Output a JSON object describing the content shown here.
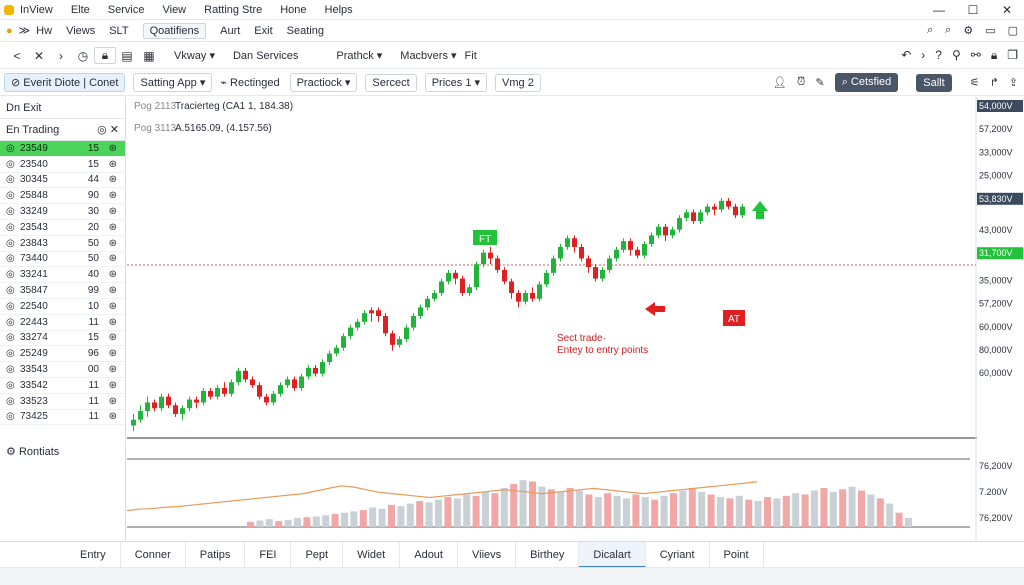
{
  "menu": [
    "InView",
    "Elte",
    "Service",
    "View",
    "Ratting Stre",
    "Hone",
    "Helps"
  ],
  "tabs": [
    {
      "label": "Hw",
      "active": false
    },
    {
      "label": "Views",
      "active": false
    },
    {
      "label": "SLT",
      "active": false
    },
    {
      "label": "Qoatifiens",
      "active": true
    },
    {
      "label": "Aurt",
      "active": false
    },
    {
      "label": "Exit",
      "active": false
    },
    {
      "label": "Seating",
      "active": false
    }
  ],
  "toolbar1": {
    "dropdowns": [
      "Vkway",
      "Dan Services",
      "Prathck",
      "Macbvers",
      "Fit"
    ]
  },
  "toolbar2": {
    "event_btn": "Everit Diote",
    "event_btn2": "Conet",
    "setting": "Satting App",
    "rect": "Rectinged",
    "predict": "Practiock",
    "sercect": "Sercect",
    "prices": "Prices 1",
    "vmg": "Vmg 2",
    "right_btn1": "Cetsfied",
    "right_btn2": "Sallt"
  },
  "sidebar": {
    "title": "Dn Exit",
    "subtitle": "En Trading",
    "rows": [
      {
        "id": "23549",
        "a": "15",
        "b": "",
        "selected": true
      },
      {
        "id": "23540",
        "a": "15",
        "b": "",
        "selected": false
      },
      {
        "id": "30345",
        "a": "44",
        "b": "",
        "selected": false
      },
      {
        "id": "25848",
        "a": "90",
        "b": "",
        "selected": false
      },
      {
        "id": "33249",
        "a": "30",
        "b": "",
        "selected": false
      },
      {
        "id": "23543",
        "a": "20",
        "b": "",
        "selected": false
      },
      {
        "id": "23843",
        "a": "50",
        "b": "",
        "selected": false
      },
      {
        "id": "73440",
        "a": "50",
        "b": "",
        "selected": false
      },
      {
        "id": "33241",
        "a": "40",
        "b": "",
        "selected": false
      },
      {
        "id": "35847",
        "a": "99",
        "b": "",
        "selected": false
      },
      {
        "id": "22540",
        "a": "10",
        "b": "",
        "selected": false
      },
      {
        "id": "22443",
        "a": "11",
        "b": "",
        "selected": false
      },
      {
        "id": "33274",
        "a": "15",
        "b": "",
        "selected": false
      },
      {
        "id": "25249",
        "a": "96",
        "b": "",
        "selected": false
      },
      {
        "id": "33543",
        "a": "00",
        "b": "",
        "selected": false
      },
      {
        "id": "33542",
        "a": "11",
        "b": "",
        "selected": false
      },
      {
        "id": "33523",
        "a": "11",
        "b": "",
        "selected": false
      },
      {
        "id": "73425",
        "a": "11",
        "b": "",
        "selected": false
      }
    ]
  },
  "bottom_left_label": "Rontiats",
  "chart_info": {
    "line1_prefix": "Pog 2113",
    "line1": "Tracierteg (CA1 1, 184.38)",
    "line2_prefix": "Pog 3113",
    "line2": "A.5165.09, (4.157.56)",
    "entry_tag": "FT",
    "exit_tag": "AT",
    "annotation_line1": "Sect trade·",
    "annotation_line2": "Entey to entry points"
  },
  "price_axis": {
    "labels": [
      "54,000V",
      "57,200V",
      "33,000V",
      "25,000V",
      "53,830V",
      "43,000V",
      "31,700V",
      "35,000V",
      "57,200V",
      "60,000V",
      "80,000V",
      "60,000V"
    ],
    "highlight_indexes": [
      0,
      4,
      6
    ],
    "lower_labels": [
      "76,200V",
      "7.200V",
      "76,200V"
    ]
  },
  "bottom_tabs": [
    "Entry",
    "Conner",
    "Patips",
    "FEI",
    "Pept",
    "Widet",
    "Adout",
    "Viievs",
    "Birthey",
    "Dicalart",
    "Cyriant",
    "Point"
  ],
  "bottom_tabs_active": 9,
  "chart_data": {
    "type": "candlestick",
    "y_range": [
      0,
      100
    ],
    "candles": [
      [
        4,
        6,
        2,
        8,
        "u"
      ],
      [
        6,
        9,
        5,
        11,
        "u"
      ],
      [
        9,
        12,
        7,
        14,
        "u"
      ],
      [
        12,
        10,
        9,
        13,
        "d"
      ],
      [
        10,
        14,
        9,
        15,
        "u"
      ],
      [
        14,
        11,
        10,
        15,
        "d"
      ],
      [
        11,
        8,
        7,
        12,
        "d"
      ],
      [
        8,
        10,
        6,
        11,
        "u"
      ],
      [
        10,
        13,
        9,
        14,
        "u"
      ],
      [
        13,
        12,
        10,
        14,
        "d"
      ],
      [
        12,
        16,
        11,
        17,
        "u"
      ],
      [
        16,
        14,
        13,
        17,
        "d"
      ],
      [
        14,
        17,
        13,
        18,
        "u"
      ],
      [
        17,
        15,
        14,
        19,
        "d"
      ],
      [
        15,
        19,
        14,
        20,
        "u"
      ],
      [
        19,
        23,
        18,
        24,
        "u"
      ],
      [
        23,
        20,
        19,
        24,
        "d"
      ],
      [
        20,
        18,
        17,
        21,
        "d"
      ],
      [
        18,
        14,
        13,
        19,
        "d"
      ],
      [
        14,
        12,
        11,
        15,
        "d"
      ],
      [
        12,
        15,
        11,
        16,
        "u"
      ],
      [
        15,
        18,
        14,
        19,
        "u"
      ],
      [
        18,
        20,
        17,
        21,
        "u"
      ],
      [
        20,
        17,
        16,
        21,
        "d"
      ],
      [
        17,
        21,
        16,
        22,
        "u"
      ],
      [
        21,
        24,
        20,
        25,
        "u"
      ],
      [
        24,
        22,
        21,
        25,
        "d"
      ],
      [
        22,
        26,
        21,
        27,
        "u"
      ],
      [
        26,
        29,
        25,
        30,
        "u"
      ],
      [
        29,
        31,
        28,
        32,
        "u"
      ],
      [
        31,
        35,
        30,
        36,
        "u"
      ],
      [
        35,
        38,
        34,
        39,
        "u"
      ],
      [
        38,
        40,
        37,
        41,
        "u"
      ],
      [
        40,
        43,
        39,
        44,
        "u"
      ],
      [
        43,
        44,
        40,
        45,
        "d"
      ],
      [
        44,
        42,
        40,
        45,
        "d"
      ],
      [
        42,
        36,
        35,
        43,
        "d"
      ],
      [
        36,
        32,
        30,
        37,
        "d"
      ],
      [
        32,
        34,
        31,
        35,
        "u"
      ],
      [
        34,
        38,
        33,
        39,
        "u"
      ],
      [
        38,
        42,
        37,
        43,
        "u"
      ],
      [
        42,
        45,
        41,
        46,
        "u"
      ],
      [
        45,
        48,
        44,
        49,
        "u"
      ],
      [
        48,
        50,
        47,
        51,
        "u"
      ],
      [
        50,
        54,
        49,
        55,
        "u"
      ],
      [
        54,
        57,
        53,
        58,
        "u"
      ],
      [
        57,
        55,
        53,
        58,
        "d"
      ],
      [
        55,
        50,
        49,
        56,
        "d"
      ],
      [
        50,
        52,
        49,
        53,
        "u"
      ],
      [
        52,
        60,
        51,
        61,
        "u"
      ],
      [
        60,
        64,
        59,
        65,
        "u"
      ],
      [
        64,
        62,
        60,
        66,
        "d"
      ],
      [
        62,
        58,
        57,
        63,
        "d"
      ],
      [
        58,
        54,
        53,
        59,
        "d"
      ],
      [
        54,
        50,
        48,
        55,
        "d"
      ],
      [
        50,
        47,
        45,
        51,
        "d"
      ],
      [
        47,
        50,
        46,
        51,
        "u"
      ],
      [
        50,
        48,
        47,
        52,
        "d"
      ],
      [
        48,
        53,
        47,
        54,
        "u"
      ],
      [
        53,
        57,
        52,
        58,
        "u"
      ],
      [
        57,
        62,
        56,
        63,
        "u"
      ],
      [
        62,
        66,
        61,
        67,
        "u"
      ],
      [
        66,
        69,
        65,
        70,
        "u"
      ],
      [
        69,
        66,
        64,
        70,
        "d"
      ],
      [
        66,
        62,
        61,
        67,
        "d"
      ],
      [
        62,
        59,
        57,
        63,
        "d"
      ],
      [
        59,
        55,
        54,
        60,
        "d"
      ],
      [
        55,
        58,
        54,
        59,
        "u"
      ],
      [
        58,
        62,
        57,
        63,
        "u"
      ],
      [
        62,
        65,
        61,
        66,
        "u"
      ],
      [
        65,
        68,
        64,
        69,
        "u"
      ],
      [
        68,
        65,
        63,
        69,
        "d"
      ],
      [
        65,
        63,
        62,
        66,
        "d"
      ],
      [
        63,
        67,
        62,
        68,
        "u"
      ],
      [
        67,
        70,
        66,
        71,
        "u"
      ],
      [
        70,
        73,
        69,
        74,
        "u"
      ],
      [
        73,
        70,
        68,
        74,
        "d"
      ],
      [
        70,
        72,
        69,
        73,
        "u"
      ],
      [
        72,
        76,
        71,
        77,
        "u"
      ],
      [
        76,
        78,
        75,
        79,
        "u"
      ],
      [
        78,
        75,
        74,
        79,
        "d"
      ],
      [
        75,
        78,
        74,
        79,
        "u"
      ],
      [
        78,
        80,
        77,
        81,
        "u"
      ],
      [
        80,
        79,
        77,
        81,
        "d"
      ],
      [
        79,
        82,
        78,
        83,
        "u"
      ],
      [
        82,
        80,
        79,
        83,
        "d"
      ],
      [
        80,
        77,
        76,
        81,
        "d"
      ],
      [
        77,
        80,
        76,
        81,
        "u"
      ]
    ],
    "volume": [
      [
        8,
        "r"
      ],
      [
        10,
        "g"
      ],
      [
        12,
        "g"
      ],
      [
        9,
        "r"
      ],
      [
        11,
        "g"
      ],
      [
        14,
        "g"
      ],
      [
        15,
        "r"
      ],
      [
        16,
        "g"
      ],
      [
        18,
        "g"
      ],
      [
        20,
        "r"
      ],
      [
        22,
        "g"
      ],
      [
        24,
        "g"
      ],
      [
        26,
        "r"
      ],
      [
        30,
        "g"
      ],
      [
        28,
        "g"
      ],
      [
        34,
        "r"
      ],
      [
        32,
        "g"
      ],
      [
        36,
        "g"
      ],
      [
        40,
        "r"
      ],
      [
        38,
        "g"
      ],
      [
        42,
        "g"
      ],
      [
        46,
        "r"
      ],
      [
        44,
        "g"
      ],
      [
        50,
        "g"
      ],
      [
        48,
        "r"
      ],
      [
        54,
        "g"
      ],
      [
        52,
        "r"
      ],
      [
        60,
        "g"
      ],
      [
        66,
        "r"
      ],
      [
        72,
        "g"
      ],
      [
        70,
        "r"
      ],
      [
        62,
        "g"
      ],
      [
        58,
        "r"
      ],
      [
        54,
        "g"
      ],
      [
        60,
        "r"
      ],
      [
        56,
        "g"
      ],
      [
        50,
        "r"
      ],
      [
        46,
        "g"
      ],
      [
        52,
        "r"
      ],
      [
        48,
        "g"
      ],
      [
        44,
        "g"
      ],
      [
        50,
        "r"
      ],
      [
        46,
        "g"
      ],
      [
        42,
        "r"
      ],
      [
        48,
        "g"
      ],
      [
        52,
        "r"
      ],
      [
        56,
        "g"
      ],
      [
        60,
        "r"
      ],
      [
        54,
        "g"
      ],
      [
        50,
        "r"
      ],
      [
        46,
        "g"
      ],
      [
        44,
        "r"
      ],
      [
        48,
        "g"
      ],
      [
        42,
        "r"
      ],
      [
        40,
        "g"
      ],
      [
        46,
        "r"
      ],
      [
        44,
        "g"
      ],
      [
        48,
        "r"
      ],
      [
        52,
        "g"
      ],
      [
        50,
        "r"
      ],
      [
        56,
        "g"
      ],
      [
        60,
        "r"
      ],
      [
        54,
        "g"
      ],
      [
        58,
        "r"
      ],
      [
        62,
        "g"
      ],
      [
        56,
        "r"
      ],
      [
        50,
        "g"
      ],
      [
        44,
        "r"
      ],
      [
        36,
        "g"
      ],
      [
        22,
        "r"
      ],
      [
        14,
        "g"
      ]
    ],
    "trend": [
      10,
      12,
      13,
      15,
      16,
      18,
      20,
      22,
      24,
      26,
      28,
      30,
      32,
      34,
      36,
      40,
      44,
      48,
      46,
      42,
      38,
      36,
      34,
      32,
      30,
      32,
      34,
      36,
      38,
      40,
      42,
      40,
      38,
      36,
      38,
      40,
      42,
      44,
      42,
      40,
      38,
      36,
      38,
      40,
      42,
      44,
      46,
      48,
      50,
      52,
      54
    ]
  }
}
